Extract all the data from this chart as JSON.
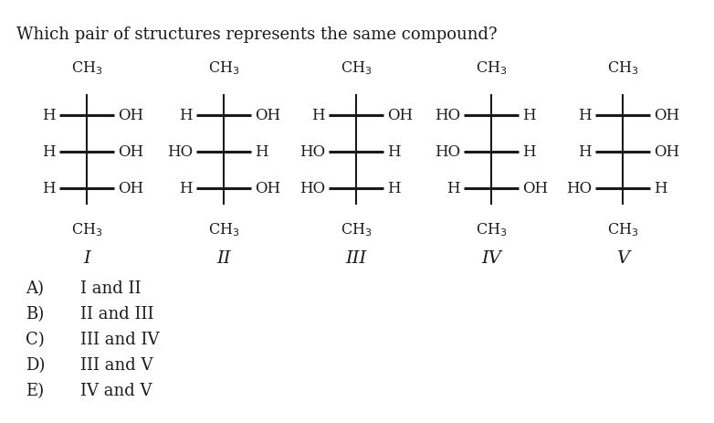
{
  "title": "Which pair of structures represents the same compound?",
  "background_color": "#ffffff",
  "text_color": "#1a1a1a",
  "structures": [
    {
      "label": "I",
      "rows": [
        {
          "left": "H",
          "right": "OH"
        },
        {
          "left": "H",
          "right": "OH"
        },
        {
          "left": "H",
          "right": "OH"
        }
      ]
    },
    {
      "label": "II",
      "rows": [
        {
          "left": "H",
          "right": "OH"
        },
        {
          "left": "HO",
          "right": "H"
        },
        {
          "left": "H",
          "right": "OH"
        }
      ]
    },
    {
      "label": "III",
      "rows": [
        {
          "left": "H",
          "right": "OH"
        },
        {
          "left": "HO",
          "right": "H"
        },
        {
          "left": "HO",
          "right": "H"
        }
      ]
    },
    {
      "label": "IV",
      "rows": [
        {
          "left": "HO",
          "right": "H"
        },
        {
          "left": "HO",
          "right": "H"
        },
        {
          "left": "H",
          "right": "OH"
        }
      ]
    },
    {
      "label": "V",
      "rows": [
        {
          "left": "H",
          "right": "OH"
        },
        {
          "left": "H",
          "right": "OH"
        },
        {
          "left": "HO",
          "right": "H"
        }
      ]
    }
  ],
  "answers": [
    {
      "letter": "A)",
      "text": "I and II"
    },
    {
      "letter": "B)",
      "text": "II and III"
    },
    {
      "letter": "C)",
      "text": "III and IV"
    },
    {
      "letter": "D)",
      "text": "III and V"
    },
    {
      "letter": "E)",
      "text": "IV and V"
    }
  ]
}
